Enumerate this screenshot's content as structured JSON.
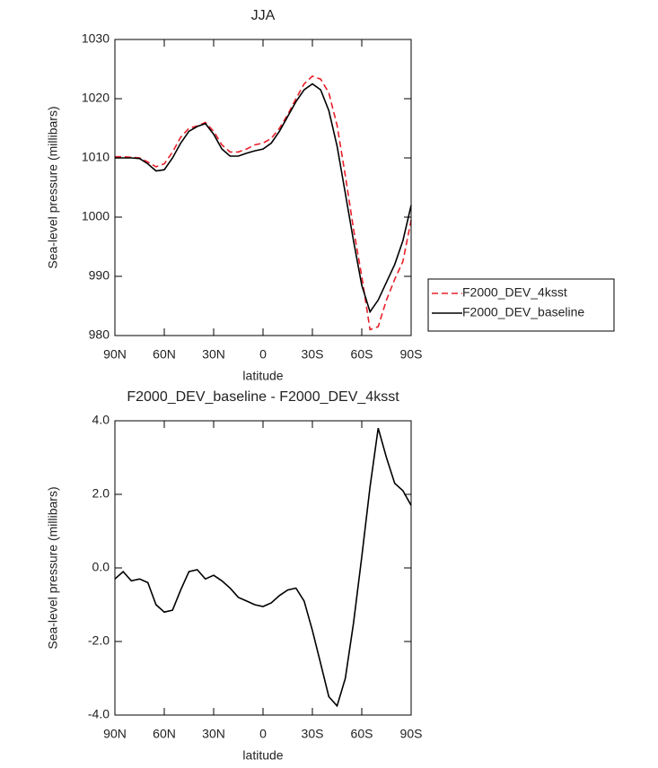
{
  "chart_data": [
    {
      "type": "line",
      "title": "JJA",
      "xlabel": "latitude",
      "ylabel": "Sea-level pressure (millibars)",
      "x": [
        90,
        85,
        80,
        75,
        70,
        65,
        60,
        55,
        50,
        45,
        40,
        35,
        30,
        25,
        20,
        15,
        10,
        5,
        0,
        -5,
        -10,
        -15,
        -20,
        -25,
        -30,
        -35,
        -40,
        -45,
        -50,
        -55,
        -60,
        -65,
        -70,
        -75,
        -80,
        -85,
        -90
      ],
      "series": [
        {
          "name": "F2000_DEV_4ksst",
          "color": "#e8202a",
          "dash": "dashed",
          "values": [
            1010.2,
            1010.2,
            1010.1,
            1010,
            1009.3,
            1008.5,
            1009,
            1011,
            1013.5,
            1015,
            1015.4,
            1016,
            1014.5,
            1012.2,
            1011,
            1011,
            1011.5,
            1012.2,
            1012.5,
            1013.3,
            1015,
            1017.3,
            1020,
            1022.5,
            1023.8,
            1023.3,
            1021,
            1015.5,
            1007,
            998,
            990,
            981,
            981.5,
            986,
            989.5,
            992.5,
            999.5
          ]
        },
        {
          "name": "F2000_DEV_baseline",
          "color": "#000000",
          "dash": "solid",
          "values": [
            1010,
            1010,
            1010,
            1009.9,
            1009,
            1007.8,
            1008,
            1010,
            1012.5,
            1014.5,
            1015.3,
            1015.8,
            1014,
            1011.5,
            1010.3,
            1010.3,
            1010.8,
            1011.2,
            1011.5,
            1012.5,
            1014.5,
            1017,
            1019.5,
            1021.5,
            1022.5,
            1021.5,
            1018,
            1012,
            1004,
            996,
            988.5,
            984,
            986,
            989,
            992,
            996,
            1002
          ]
        }
      ],
      "xlim": [
        90,
        -90
      ],
      "xticks": [
        {
          "value": 90,
          "label": "90N"
        },
        {
          "value": 60,
          "label": "60N"
        },
        {
          "value": 30,
          "label": "30N"
        },
        0,
        {
          "value": -30,
          "label": "30S"
        },
        {
          "value": -60,
          "label": "60S"
        },
        {
          "value": -90,
          "label": "90S"
        }
      ],
      "ylim": [
        980,
        1030
      ],
      "yticks": [
        980,
        990,
        1000,
        1010,
        1020,
        1030
      ],
      "legend": "outside-right"
    },
    {
      "type": "line",
      "title": "F2000_DEV_baseline - F2000_DEV_4ksst",
      "xlabel": "latitude",
      "ylabel": "Sea-level pressure (millibars)",
      "x": [
        90,
        85,
        80,
        75,
        70,
        65,
        60,
        55,
        50,
        45,
        40,
        35,
        30,
        25,
        20,
        15,
        10,
        5,
        0,
        -5,
        -10,
        -15,
        -20,
        -25,
        -30,
        -35,
        -40,
        -45,
        -50,
        -55,
        -60,
        -65,
        -70,
        -75,
        -80,
        -85,
        -90
      ],
      "series": [
        {
          "color": "#000000",
          "dash": "solid",
          "values": [
            -0.3,
            -0.1,
            -0.35,
            -0.3,
            -0.4,
            -1.0,
            -1.2,
            -1.15,
            -0.6,
            -0.1,
            -0.05,
            -0.3,
            -0.2,
            -0.35,
            -0.55,
            -0.8,
            -0.9,
            -1.0,
            -1.05,
            -0.95,
            -0.75,
            -0.6,
            -0.55,
            -0.9,
            -1.7,
            -2.6,
            -3.5,
            -3.75,
            -3.0,
            -1.5,
            0.3,
            2.2,
            3.8,
            3.0,
            2.3,
            2.1,
            1.7
          ]
        }
      ],
      "xlim": [
        90,
        -90
      ],
      "xticks": [
        {
          "value": 90,
          "label": "90N"
        },
        {
          "value": 60,
          "label": "60N"
        },
        {
          "value": 30,
          "label": "30N"
        },
        0,
        {
          "value": -30,
          "label": "30S"
        },
        {
          "value": -60,
          "label": "60S"
        },
        {
          "value": -90,
          "label": "90S"
        }
      ],
      "ylim": [
        -4,
        4
      ],
      "yticks": [
        {
          "value": -4,
          "label": "-4.0"
        },
        {
          "value": -2,
          "label": "-2.0"
        },
        {
          "value": 0,
          "label": "0.0"
        },
        {
          "value": 2,
          "label": "2.0"
        },
        {
          "value": 4,
          "label": "4.0"
        }
      ]
    }
  ]
}
